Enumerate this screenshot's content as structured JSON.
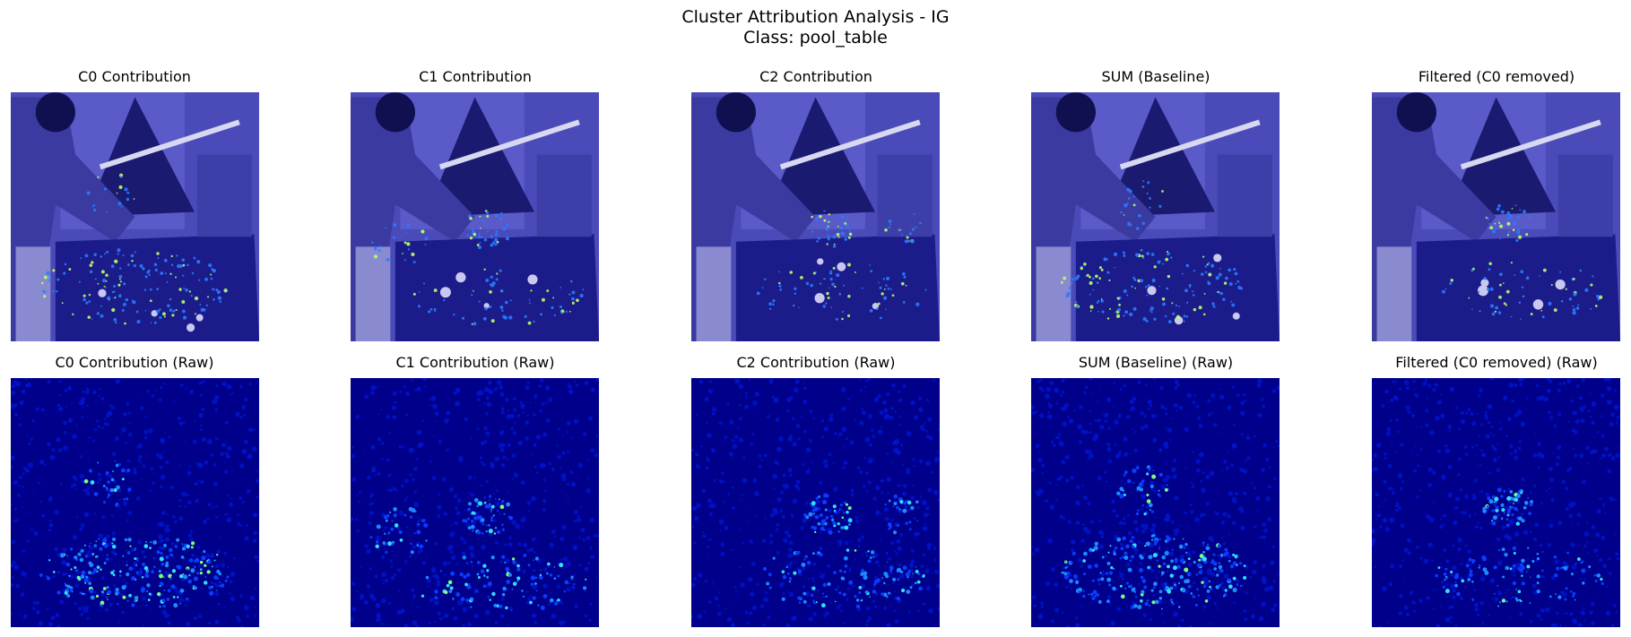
{
  "figure": {
    "title_line1": "Cluster Attribution Analysis - IG",
    "title_line2": "Class: pool_table"
  },
  "panels": {
    "row1": [
      {
        "title": "C0 Contribution"
      },
      {
        "title": "C1 Contribution"
      },
      {
        "title": "C2 Contribution"
      },
      {
        "title": "SUM (Baseline)"
      },
      {
        "title": "Filtered (C0 removed)"
      }
    ],
    "row2": [
      {
        "title": "C0 Contribution (Raw)"
      },
      {
        "title": "C1 Contribution (Raw)"
      },
      {
        "title": "C2 Contribution (Raw)"
      },
      {
        "title": "SUM (Baseline) (Raw)"
      },
      {
        "title": "Filtered (C0 removed) (Raw)"
      }
    ]
  },
  "colors": {
    "overlay_bg": "#4a4ab8",
    "raw_bg": "#00008a",
    "hot": "#7cff7a"
  }
}
